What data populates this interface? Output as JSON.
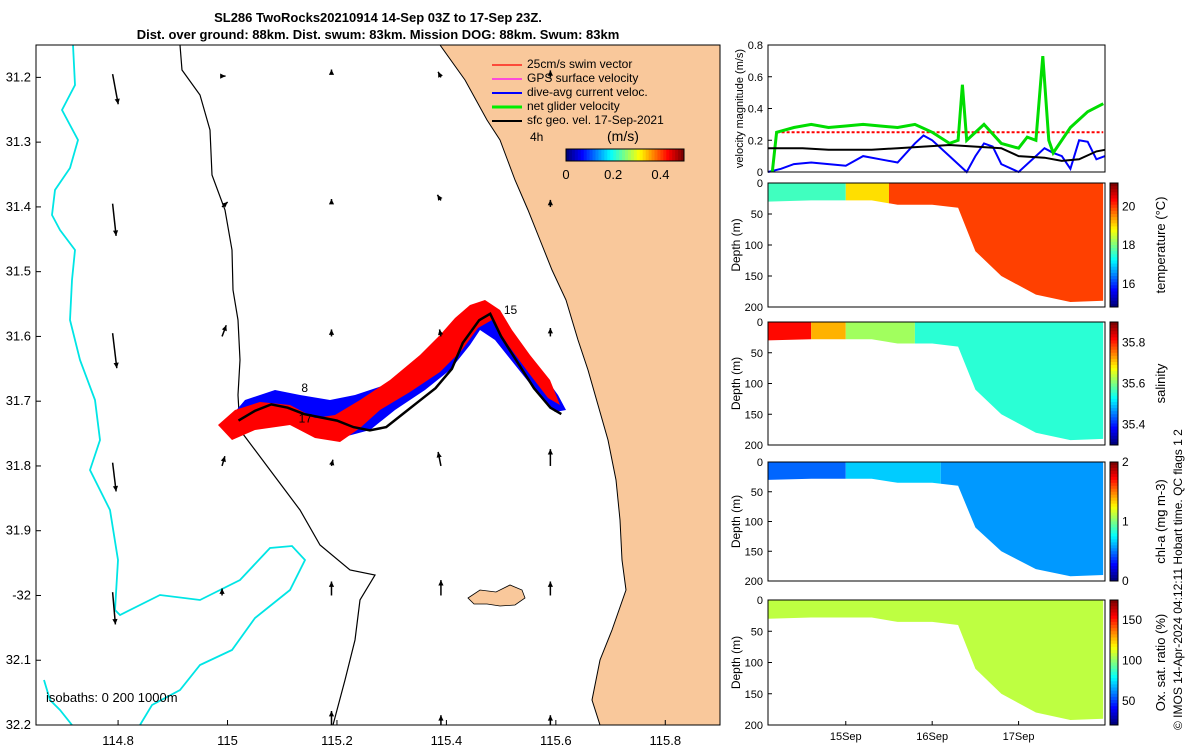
{
  "title_line1": "SL286 TwoRocks20210914 14-Sep 03Z to 17-Sep 23Z.",
  "title_line2": "Dist. over ground: 88km. Dist. swum: 83km. Mission DOG: 88km. Swum: 83km",
  "copyright": "© IMOS 14-Apr-2024 04:12:11 Hobart time. QC flags 1  2",
  "colors": {
    "land": "#f9c89b",
    "isobath_shallow": "#00e5e5",
    "glider_track": "#000000",
    "swim": "#ff0000",
    "gps": "#ff00ff",
    "dive": "#0000ff",
    "net": "#00ee00",
    "sfc": "#000000"
  },
  "chart_data": [
    {
      "type": "scatter",
      "name": "map",
      "xlim": [
        114.65,
        115.9
      ],
      "ylim": [
        -32.2,
        -31.15
      ],
      "xticks": [
        114.8,
        115,
        115.2,
        115.4,
        115.6,
        115.8
      ],
      "xtick_labels": [
        "114.8",
        "115",
        "115.2",
        "115.4",
        "115.6",
        "115.8"
      ],
      "yticks": [
        -31.2,
        -31.3,
        -31.4,
        -31.5,
        -31.6,
        -31.7,
        -31.8,
        -31.9,
        -32,
        -32.1,
        -32.2
      ],
      "ytick_labels": [
        "31.2",
        "31.3",
        "31.4",
        "31.5",
        "31.6",
        "31.7",
        "31.8",
        "31.9",
        "-32",
        "32.1",
        "32.2"
      ],
      "legend": [
        "25cm/s swim vector",
        "GPS surface velocity",
        "dive-avg current veloc.",
        "net glider velocity",
        "sfc geo. vel. 17-Sep-2021"
      ],
      "legend_extra": "4h",
      "colorbar_label": "(m/s)",
      "colorbar_ticks": [
        0,
        0.2,
        0.4
      ],
      "colorbar_tick_labels": [
        "0",
        "0.2",
        "0.4"
      ],
      "isobath_label": "isobaths: 0   200  1000m",
      "track_labels": [
        {
          "text": "15",
          "lon": 115.505,
          "lat": -31.565
        },
        {
          "text": "17",
          "lon": 115.13,
          "lat": -31.733
        },
        {
          "text": "8",
          "lon": 115.135,
          "lat": -31.686
        }
      ],
      "track": [
        [
          115.02,
          -31.73
        ],
        [
          115.05,
          -31.715
        ],
        [
          115.08,
          -31.705
        ],
        [
          115.11,
          -31.71
        ],
        [
          115.14,
          -31.72
        ],
        [
          115.17,
          -31.725
        ],
        [
          115.2,
          -31.73
        ],
        [
          115.23,
          -31.74
        ],
        [
          115.26,
          -31.745
        ],
        [
          115.29,
          -31.74
        ],
        [
          115.32,
          -31.72
        ],
        [
          115.35,
          -31.7
        ],
        [
          115.38,
          -31.68
        ],
        [
          115.41,
          -31.65
        ],
        [
          115.43,
          -31.61
        ],
        [
          115.46,
          -31.575
        ],
        [
          115.48,
          -31.565
        ],
        [
          115.5,
          -31.6
        ],
        [
          115.53,
          -31.64
        ],
        [
          115.56,
          -31.68
        ],
        [
          115.59,
          -31.71
        ],
        [
          115.61,
          -31.72
        ]
      ],
      "vectors": [
        {
          "lon": 114.79,
          "lat": -31.195,
          "u": 0.08,
          "v": -0.43
        },
        {
          "lon": 114.79,
          "lat": -31.395,
          "u": 0.05,
          "v": -0.46
        },
        {
          "lon": 114.79,
          "lat": -31.595,
          "u": 0.06,
          "v": -0.5
        },
        {
          "lon": 114.79,
          "lat": -31.795,
          "u": 0.05,
          "v": -0.41
        },
        {
          "lon": 114.79,
          "lat": -31.995,
          "u": 0.04,
          "v": -0.46
        },
        {
          "lon": 114.99,
          "lat": -31.198,
          "u": 0.05,
          "v": 0.0
        },
        {
          "lon": 114.99,
          "lat": -31.4,
          "u": 0.08,
          "v": 0.07
        },
        {
          "lon": 114.99,
          "lat": -31.6,
          "u": 0.06,
          "v": 0.16
        },
        {
          "lon": 114.99,
          "lat": -31.8,
          "u": 0.04,
          "v": 0.14
        },
        {
          "lon": 114.99,
          "lat": -32.0,
          "u": 0.0,
          "v": 0.1
        },
        {
          "lon": 115.19,
          "lat": -31.19,
          "u": 0.0,
          "v": 0.02
        },
        {
          "lon": 115.19,
          "lat": -31.39,
          "u": 0.0,
          "v": 0.02
        },
        {
          "lon": 115.19,
          "lat": -31.6,
          "u": 0.0,
          "v": 0.1
        },
        {
          "lon": 115.19,
          "lat": -31.8,
          "u": 0.02,
          "v": 0.09
        },
        {
          "lon": 115.19,
          "lat": -32.0,
          "u": 0.0,
          "v": 0.2
        },
        {
          "lon": 115.19,
          "lat": -32.2,
          "u": 0.0,
          "v": 0.2
        },
        {
          "lon": 115.39,
          "lat": -31.2,
          "u": -0.04,
          "v": 0.08
        },
        {
          "lon": 115.39,
          "lat": -31.39,
          "u": -0.05,
          "v": 0.08
        },
        {
          "lon": 115.39,
          "lat": -31.6,
          "u": -0.02,
          "v": 0.1
        },
        {
          "lon": 115.39,
          "lat": -31.8,
          "u": -0.04,
          "v": 0.2
        },
        {
          "lon": 115.39,
          "lat": -32.0,
          "u": 0.0,
          "v": 0.22
        },
        {
          "lon": 115.39,
          "lat": -32.2,
          "u": 0.0,
          "v": 0.14
        },
        {
          "lon": 115.59,
          "lat": -31.2,
          "u": 0.0,
          "v": 0.1
        },
        {
          "lon": 115.59,
          "lat": -31.4,
          "u": 0.0,
          "v": 0.1
        },
        {
          "lon": 115.59,
          "lat": -31.6,
          "u": 0.0,
          "v": 0.12
        },
        {
          "lon": 115.59,
          "lat": -31.8,
          "u": 0.0,
          "v": 0.24
        },
        {
          "lon": 115.59,
          "lat": -32.0,
          "u": 0.0,
          "v": 0.2
        },
        {
          "lon": 115.59,
          "lat": -32.2,
          "u": 0.0,
          "v": 0.14
        }
      ]
    },
    {
      "type": "line",
      "name": "velocity",
      "ylabel": "velocity magnitude (m/s)",
      "ylim": [
        0,
        0.8
      ],
      "yticks": [
        0,
        0.2,
        0.4,
        0.6,
        0.8
      ],
      "ytick_labels": [
        "0",
        "0.2",
        "0.4",
        "0.6",
        "0.8"
      ],
      "xlim": [
        14.1,
        18.0
      ],
      "series": [
        {
          "name": "swim",
          "color": "#ff0000",
          "x": [
            14.2,
            17.98
          ],
          "y": [
            0.25,
            0.25
          ]
        },
        {
          "name": "dive",
          "color": "#0000ff",
          "x": [
            14.1,
            14.25,
            14.4,
            14.6,
            14.8,
            15.0,
            15.2,
            15.4,
            15.6,
            15.8,
            15.9,
            16.0,
            16.2,
            16.4,
            16.5,
            16.6,
            16.7,
            16.8,
            17.0,
            17.2,
            17.3,
            17.4,
            17.5,
            17.6,
            17.7,
            17.8,
            17.9,
            18.0
          ],
          "y": [
            0.0,
            0.02,
            0.05,
            0.06,
            0.05,
            0.04,
            0.1,
            0.08,
            0.06,
            0.18,
            0.23,
            0.2,
            0.1,
            0.0,
            0.1,
            0.18,
            0.16,
            0.05,
            0.0,
            0.1,
            0.15,
            0.12,
            0.1,
            0.02,
            0.2,
            0.19,
            0.08,
            0.1
          ]
        },
        {
          "name": "net",
          "color": "#00dd00",
          "x": [
            14.15,
            14.2,
            14.4,
            14.6,
            14.8,
            15.0,
            15.2,
            15.4,
            15.6,
            15.8,
            16.0,
            16.2,
            16.3,
            16.35,
            16.4,
            16.6,
            16.8,
            17.0,
            17.1,
            17.2,
            17.28,
            17.35,
            17.4,
            17.6,
            17.8,
            17.98
          ],
          "y": [
            0.0,
            0.25,
            0.28,
            0.3,
            0.28,
            0.29,
            0.3,
            0.29,
            0.28,
            0.3,
            0.25,
            0.18,
            0.2,
            0.55,
            0.2,
            0.3,
            0.18,
            0.15,
            0.22,
            0.2,
            0.73,
            0.2,
            0.12,
            0.28,
            0.38,
            0.43
          ]
        },
        {
          "name": "sfc",
          "color": "#000000",
          "x": [
            14.1,
            14.3,
            14.5,
            14.8,
            15.0,
            15.3,
            15.6,
            15.9,
            16.2,
            16.5,
            16.8,
            17.0,
            17.3,
            17.5,
            17.7,
            17.9,
            18.0
          ],
          "y": [
            0.15,
            0.15,
            0.15,
            0.14,
            0.14,
            0.14,
            0.15,
            0.16,
            0.17,
            0.16,
            0.15,
            0.1,
            0.09,
            0.07,
            0.08,
            0.13,
            0.14
          ]
        }
      ]
    },
    {
      "type": "heatmap",
      "name": "temperature",
      "ylabel": "Depth (m)",
      "ylim": [
        0,
        200
      ],
      "yticks": [
        0,
        50,
        100,
        150,
        200
      ],
      "ytick_labels": [
        "0",
        "50",
        "100",
        "150",
        "200"
      ],
      "colorbar_label": "temperature (°C)",
      "colorbar_range": [
        14.8,
        21.2
      ],
      "colorbar_ticks": [
        16,
        18,
        20
      ],
      "colorbar_tick_labels": [
        "16",
        "18",
        "20"
      ],
      "colormap": "jet",
      "segments": [
        {
          "x0": 14.1,
          "x1": 15.0,
          "value": 17.6
        },
        {
          "x0": 15.0,
          "x1": 15.5,
          "value": 19.0
        },
        {
          "x0": 15.5,
          "x1": 17.98,
          "value": 20.0
        }
      ]
    },
    {
      "type": "heatmap",
      "name": "salinity",
      "ylabel": "Depth (m)",
      "ylim": [
        0,
        200
      ],
      "yticks": [
        0,
        50,
        100,
        150,
        200
      ],
      "ytick_labels": [
        "0",
        "50",
        "100",
        "150",
        "200"
      ],
      "colorbar_label": "salinity",
      "colorbar_range": [
        35.3,
        35.9
      ],
      "colorbar_ticks": [
        35.4,
        35.6,
        35.8
      ],
      "colorbar_tick_labels": [
        "35.4",
        "35.6",
        "35.8"
      ],
      "colormap": "jet",
      "segments": [
        {
          "x0": 14.1,
          "x1": 14.6,
          "value": 35.82
        },
        {
          "x0": 14.6,
          "x1": 15.0,
          "value": 35.72
        },
        {
          "x0": 15.0,
          "x1": 15.8,
          "value": 35.62
        },
        {
          "x0": 15.8,
          "x1": 17.98,
          "value": 35.55
        }
      ]
    },
    {
      "type": "heatmap",
      "name": "chl-a",
      "ylabel": "Depth (m)",
      "ylim": [
        0,
        200
      ],
      "yticks": [
        0,
        50,
        100,
        150,
        200
      ],
      "ytick_labels": [
        "0",
        "50",
        "100",
        "150",
        "200"
      ],
      "colorbar_label": "chl-a (mg m-3)",
      "colorbar_range": [
        0,
        2
      ],
      "colorbar_ticks": [
        0,
        1,
        2
      ],
      "colorbar_tick_labels": [
        "0",
        "1",
        "2"
      ],
      "colormap": "jet",
      "segments": [
        {
          "x0": 14.1,
          "x1": 15.0,
          "value": 0.45
        },
        {
          "x0": 15.0,
          "x1": 16.1,
          "value": 0.65
        },
        {
          "x0": 16.1,
          "x1": 17.98,
          "value": 0.55
        }
      ]
    },
    {
      "type": "heatmap",
      "name": "oxygen",
      "ylabel": "Depth (m)",
      "ylim": [
        0,
        200
      ],
      "yticks": [
        0,
        50,
        100,
        150,
        200
      ],
      "ytick_labels": [
        "0",
        "50",
        "100",
        "150",
        "200"
      ],
      "xticks": [
        15,
        16,
        17
      ],
      "xtick_labels": [
        "15Sep",
        "16Sep",
        "17Sep"
      ],
      "colorbar_label": "Ox. sat. ratio (%)",
      "colorbar_range": [
        20,
        175
      ],
      "colorbar_ticks": [
        50,
        100,
        150
      ],
      "colorbar_tick_labels": [
        "50",
        "100",
        "150"
      ],
      "colormap": "jet",
      "segments": [
        {
          "x0": 14.1,
          "x1": 17.98,
          "value": 107
        }
      ]
    }
  ]
}
